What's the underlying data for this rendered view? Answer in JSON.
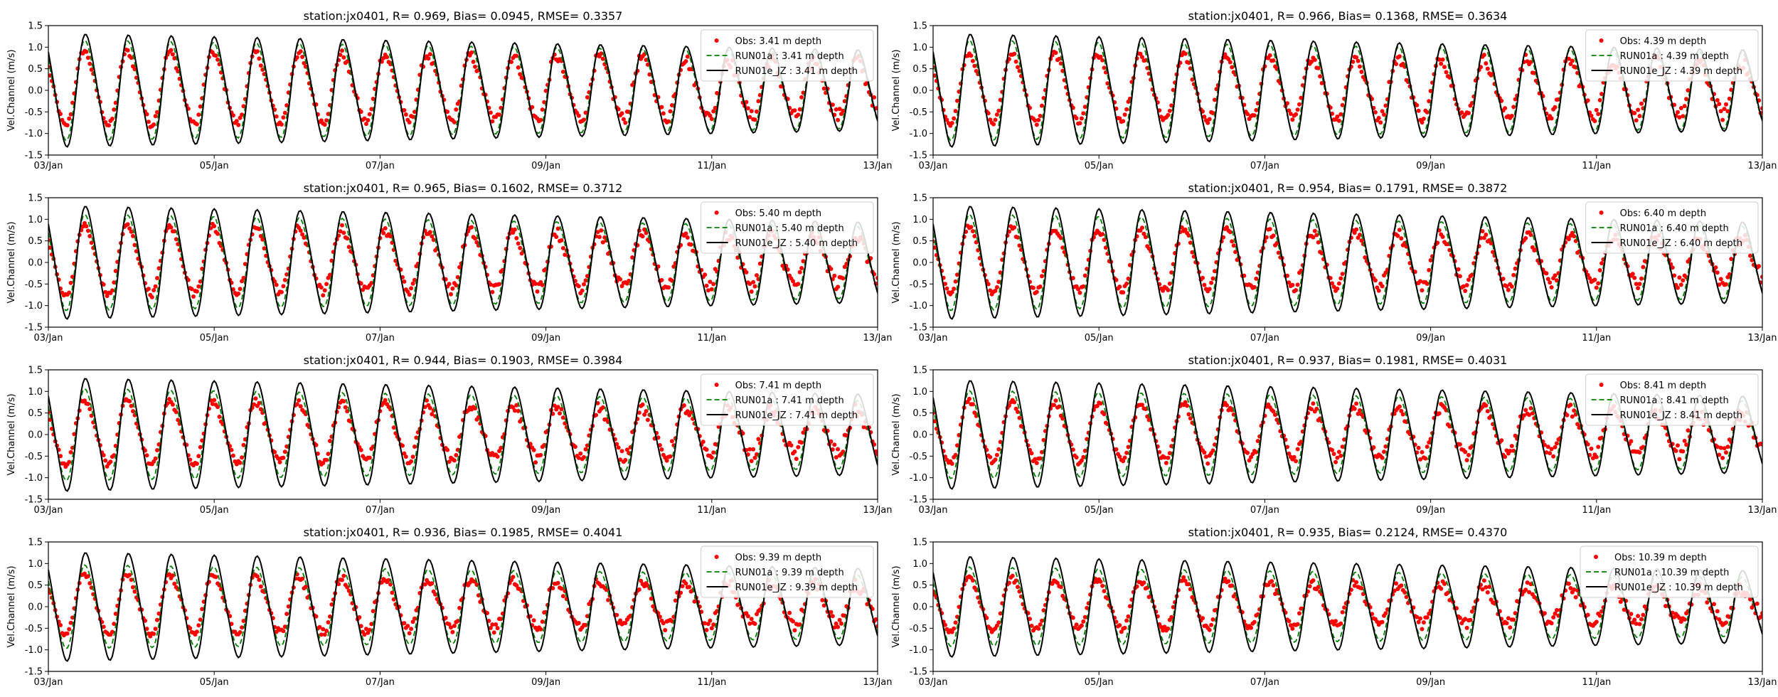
{
  "figure": {
    "xlabel": "",
    "ylabel": "Vel.Channel (m/s)",
    "xticks": [
      "03/Jan",
      "05/Jan",
      "07/Jan",
      "09/Jan",
      "11/Jan",
      "13/Jan"
    ],
    "yticks": [
      "-1.5",
      "-1.0",
      "-0.5",
      "0.0",
      "0.5",
      "1.0",
      "1.5"
    ],
    "colors": {
      "obs": "#ff0000",
      "run01a": "#008000",
      "run01e": "#000000"
    },
    "legend_location": "upper-right"
  },
  "chart_data": [
    {
      "type": "line",
      "title": "station:jx0401, R= 0.969, Bias= 0.0945, RMSE= 0.3357",
      "xlim": [
        "03/Jan",
        "13/Jan"
      ],
      "ylim": [
        -1.5,
        1.5
      ],
      "grid": false,
      "legend": [
        "Obs: 3.41 m depth",
        "RUN01a : 3.41 m depth",
        "RUN01e_JZ : 3.41 m depth"
      ],
      "series_params": {
        "period_hours": 12.42,
        "e_amp_start": 1.35,
        "e_amp_end": 0.95,
        "a_amp_start": 1.2,
        "a_amp_end": 0.9,
        "obs_amp_start": 0.9,
        "obs_amp_end": 0.65,
        "mean": 0.0
      }
    },
    {
      "type": "line",
      "title": "station:jx0401, R= 0.966, Bias= 0.1368, RMSE= 0.3634",
      "xlim": [
        "03/Jan",
        "13/Jan"
      ],
      "ylim": [
        -1.5,
        1.5
      ],
      "grid": false,
      "legend": [
        "Obs: 4.39 m depth",
        "RUN01a : 4.39 m depth",
        "RUN01e_JZ : 4.39 m depth"
      ],
      "series_params": {
        "period_hours": 12.42,
        "e_amp_start": 1.35,
        "e_amp_end": 0.95,
        "a_amp_start": 1.2,
        "a_amp_end": 0.9,
        "obs_amp_start": 0.85,
        "obs_amp_end": 0.6,
        "mean": 0.0
      }
    },
    {
      "type": "line",
      "title": "station:jx0401, R= 0.965, Bias= 0.1602, RMSE= 0.3712",
      "xlim": [
        "03/Jan",
        "13/Jan"
      ],
      "ylim": [
        -1.5,
        1.5
      ],
      "grid": false,
      "legend": [
        "Obs: 5.40 m depth",
        "RUN01a : 5.40 m depth",
        "RUN01e_JZ : 5.40 m depth"
      ],
      "series_params": {
        "period_hours": 12.42,
        "e_amp_start": 1.35,
        "e_amp_end": 0.95,
        "a_amp_start": 1.15,
        "a_amp_end": 0.85,
        "obs_amp_start": 0.85,
        "obs_amp_end": 0.55,
        "mean": 0.0
      }
    },
    {
      "type": "line",
      "title": "station:jx0401, R= 0.954, Bias= 0.1791, RMSE= 0.3872",
      "xlim": [
        "03/Jan",
        "13/Jan"
      ],
      "ylim": [
        -1.5,
        1.5
      ],
      "grid": false,
      "legend": [
        "Obs: 6.40 m depth",
        "RUN01a : 6.40 m depth",
        "RUN01e_JZ : 6.40 m depth"
      ],
      "series_params": {
        "period_hours": 12.42,
        "e_amp_start": 1.35,
        "e_amp_end": 0.95,
        "a_amp_start": 1.15,
        "a_amp_end": 0.85,
        "obs_amp_start": 0.8,
        "obs_amp_end": 0.5,
        "mean": 0.0
      }
    },
    {
      "type": "line",
      "title": "station:jx0401, R= 0.944, Bias= 0.1903, RMSE= 0.3984",
      "xlim": [
        "03/Jan",
        "13/Jan"
      ],
      "ylim": [
        -1.5,
        1.5
      ],
      "grid": false,
      "legend": [
        "Obs: 7.41 m depth",
        "RUN01a : 7.41 m depth",
        "RUN01e_JZ : 7.41 m depth"
      ],
      "series_params": {
        "period_hours": 12.42,
        "e_amp_start": 1.35,
        "e_amp_end": 0.95,
        "a_amp_start": 1.1,
        "a_amp_end": 0.8,
        "obs_amp_start": 0.8,
        "obs_amp_end": 0.5,
        "mean": 0.0
      }
    },
    {
      "type": "line",
      "title": "station:jx0401, R= 0.937, Bias= 0.1981, RMSE= 0.4031",
      "xlim": [
        "03/Jan",
        "13/Jan"
      ],
      "ylim": [
        -1.5,
        1.5
      ],
      "grid": false,
      "legend": [
        "Obs: 8.41 m depth",
        "RUN01a : 8.41 m depth",
        "RUN01e_JZ : 8.41 m depth"
      ],
      "series_params": {
        "period_hours": 12.42,
        "e_amp_start": 1.3,
        "e_amp_end": 0.9,
        "a_amp_start": 1.05,
        "a_amp_end": 0.8,
        "obs_amp_start": 0.75,
        "obs_amp_end": 0.45,
        "mean": 0.0
      }
    },
    {
      "type": "line",
      "title": "station:jx0401, R= 0.936, Bias= 0.1985, RMSE= 0.4041",
      "xlim": [
        "03/Jan",
        "13/Jan"
      ],
      "ylim": [
        -1.5,
        1.5
      ],
      "grid": false,
      "legend": [
        "Obs: 9.39 m depth",
        "RUN01a : 9.39 m depth",
        "RUN01e_JZ : 9.39 m depth"
      ],
      "series_params": {
        "period_hours": 12.42,
        "e_amp_start": 1.3,
        "e_amp_end": 0.9,
        "a_amp_start": 1.0,
        "a_amp_end": 0.75,
        "obs_amp_start": 0.75,
        "obs_amp_end": 0.45,
        "mean": 0.0
      }
    },
    {
      "type": "line",
      "title": "station:jx0401, R= 0.935, Bias= 0.2124, RMSE= 0.4370",
      "xlim": [
        "03/Jan",
        "13/Jan"
      ],
      "ylim": [
        -1.5,
        1.5
      ],
      "grid": false,
      "legend": [
        "Obs: 10.39 m depth",
        "RUN01a : 10.39 m depth",
        "RUN01e_JZ : 10.39 m depth"
      ],
      "series_params": {
        "period_hours": 12.42,
        "e_amp_start": 1.2,
        "e_amp_end": 0.85,
        "a_amp_start": 0.95,
        "a_amp_end": 0.7,
        "obs_amp_start": 0.65,
        "obs_amp_end": 0.35,
        "mean": 0.0
      }
    }
  ]
}
